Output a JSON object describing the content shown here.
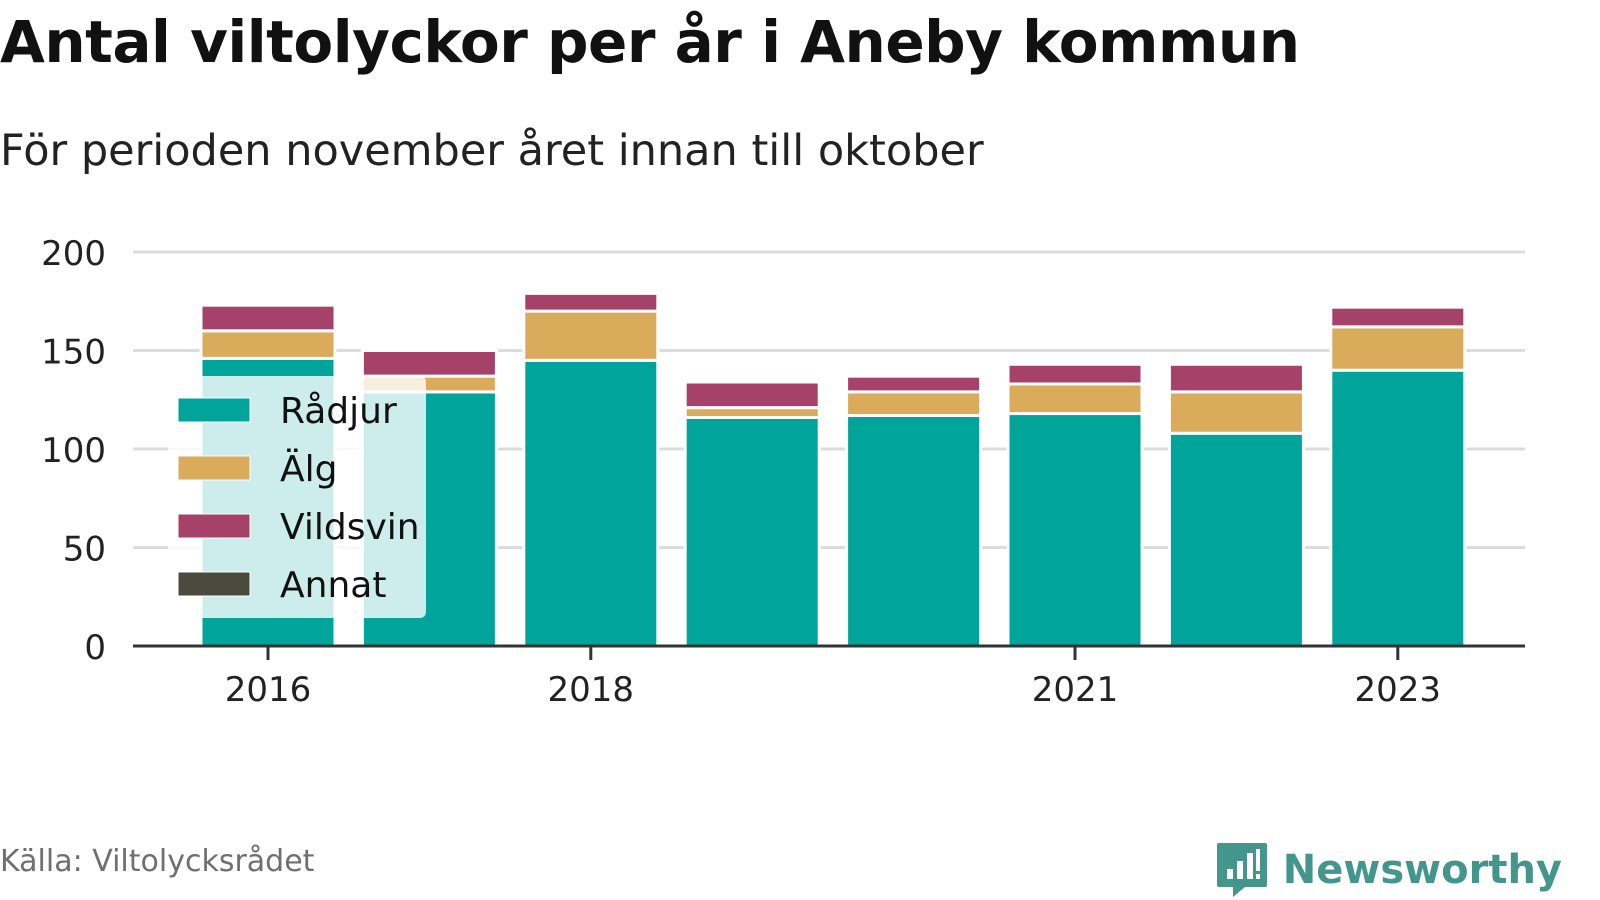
{
  "header": {
    "title": "Antal viltolyckor per år i Aneby kommun",
    "subtitle": "För perioden november året innan till oktober"
  },
  "footer": {
    "source": "Källa: Viltolycksrådet",
    "brand": "Newsworthy",
    "brand_icon": "newsworthy-logo-icon",
    "brand_color": "#44958b"
  },
  "chart_data": {
    "type": "bar",
    "stacked": true,
    "categories": [
      "2016",
      "2017",
      "2018",
      "2019",
      "2020",
      "2021",
      "2022",
      "2023"
    ],
    "x_tick_labels": [
      "2016",
      "2018",
      "2021",
      "2023"
    ],
    "series": [
      {
        "name": "Rådjur",
        "color": "#00a49a",
        "values": [
          146,
          129,
          145,
          116,
          117,
          118,
          108,
          140
        ]
      },
      {
        "name": "Älg",
        "color": "#d9ab5a",
        "values": [
          14,
          8,
          25,
          5,
          12,
          15,
          21,
          22
        ]
      },
      {
        "name": "Vildsvin",
        "color": "#a6416a",
        "values": [
          13,
          13,
          9,
          13,
          8,
          10,
          14,
          10
        ]
      },
      {
        "name": "Annat",
        "color": "#4a4a3e",
        "values": [
          0,
          1,
          0,
          0,
          1,
          0,
          0,
          0
        ]
      }
    ],
    "ylim": [
      0,
      200
    ],
    "y_ticks": [
      0,
      50,
      100,
      150,
      200
    ],
    "grid": true,
    "legend_position": "inside-left",
    "xlabel": "",
    "ylabel": ""
  }
}
